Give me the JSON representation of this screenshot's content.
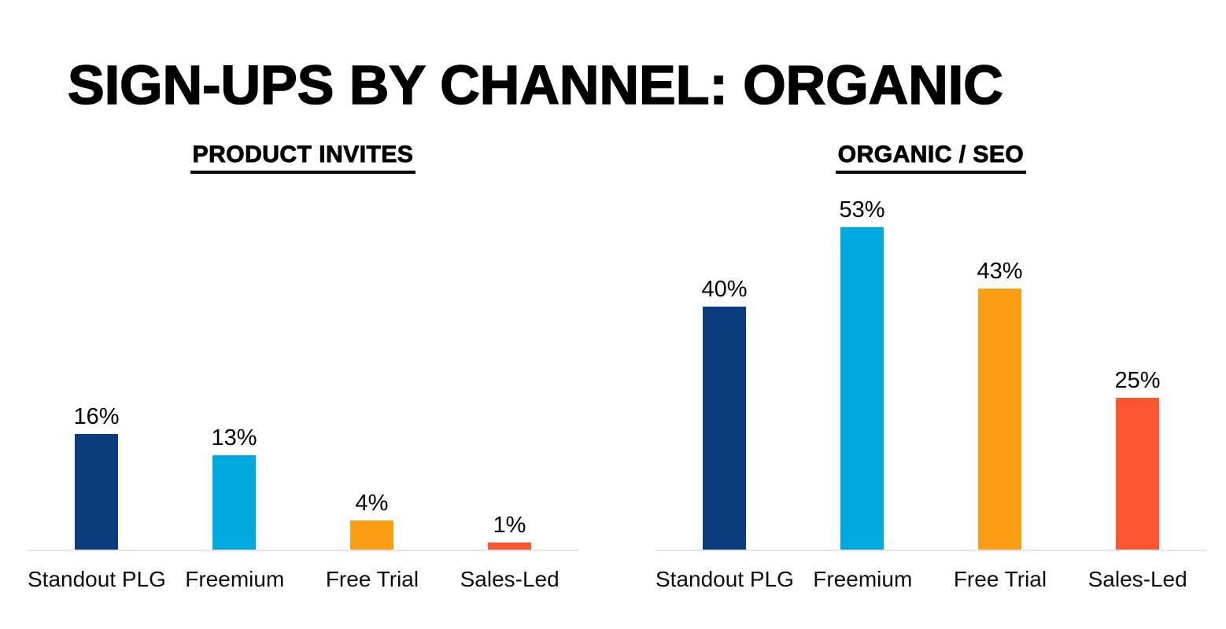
{
  "page": {
    "title": "SIGN-UPS BY CHANNEL: ORGANIC"
  },
  "colors": {
    "bars": [
      "#0B3C7D",
      "#00A9E0",
      "#FC9E14",
      "#FD5732"
    ],
    "baseline": "#E7E7E7",
    "title_text": "#000000"
  },
  "chart_data": [
    {
      "type": "bar",
      "title": "PRODUCT INVITES",
      "categories": [
        "Standout PLG",
        "Freemium",
        "Free Trial",
        "Sales-Led"
      ],
      "values": [
        16,
        13,
        4,
        1
      ],
      "data_labels": [
        "16%",
        "13%",
        "4%",
        "1%"
      ],
      "unit": "percent",
      "xlabel": "",
      "ylabel": "",
      "ylim": [
        0,
        50
      ],
      "grid": false,
      "legend": false,
      "bar_colors": [
        "#0B3C7D",
        "#00A9E0",
        "#FC9E14",
        "#FD5732"
      ]
    },
    {
      "type": "bar",
      "title": "ORGANIC / SEO",
      "categories": [
        "Standout PLG",
        "Freemium",
        "Free Trial",
        "Sales-Led"
      ],
      "values": [
        40,
        53,
        43,
        25
      ],
      "data_labels": [
        "40%",
        "53%",
        "43%",
        "25%"
      ],
      "unit": "percent",
      "xlabel": "",
      "ylabel": "",
      "ylim": [
        0,
        60
      ],
      "grid": false,
      "legend": false,
      "bar_colors": [
        "#0B3C7D",
        "#00A9E0",
        "#FC9E14",
        "#FD5732"
      ]
    }
  ]
}
